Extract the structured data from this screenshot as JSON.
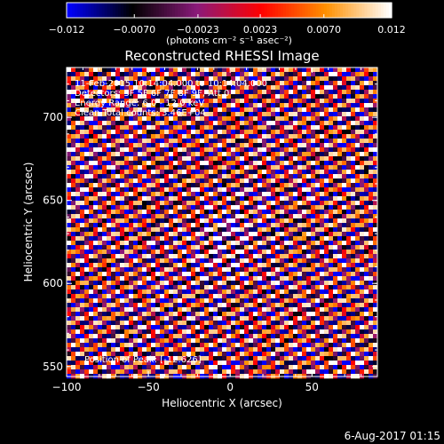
{
  "chart_data": {
    "type": "heatmap",
    "title": "Reconstructed RHESSI Image",
    "xlabel": "Heliocentric X (arcsec)",
    "ylabel": "Heliocentric Y (arcsec)",
    "xlim": [
      -100,
      90
    ],
    "ylim": [
      544,
      730
    ],
    "x_ticks": [
      -100,
      -50,
      0,
      50
    ],
    "y_ticks": [
      550,
      600,
      650,
      700
    ],
    "colorbar": {
      "range": [
        -0.012,
        0.012
      ],
      "tick_values": [
        -0.012,
        -0.007,
        -0.0023,
        0.0023,
        0.007,
        0.012
      ],
      "tick_labels": [
        "-0.012",
        "-0.0070",
        "-0.0023",
        "0.0023",
        "0.0070",
        "0.012"
      ],
      "unit_label": "(photons cm⁻² s⁻¹ asec⁻²)",
      "colors": [
        "#0000ff",
        "#000000",
        "#8a1a7a",
        "#ff0000",
        "#ff9000",
        "#ffffff"
      ]
    },
    "annotations": [
      "11-Feb-2015 10:14:04.000 to 10:14:04.000",
      "Detectors: 3F 5F 6F 7F 8F 9F, Att 0",
      "Energy Range: 6.0 - 12.0 keV",
      "Clean     Total counts: 3.46E+04"
    ],
    "peak_label": "Position of Peak:   [-12.626]",
    "stripe_pattern": {
      "description_free_params": true,
      "angle_slope": -0.42,
      "period": 13.0
    }
  },
  "footer": {
    "timestamp": "6-Aug-2017 01:15"
  }
}
